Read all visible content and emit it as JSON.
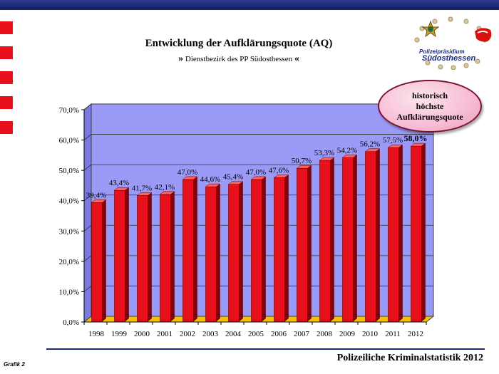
{
  "header": {
    "title": "Entwicklung der Aufklärungsquote (AQ)",
    "subtitle_prefix": "»",
    "subtitle_text": " Dienstbezirk des PP Südosthessen ",
    "subtitle_suffix": "«",
    "bar_color": "#1c2a78"
  },
  "logo": {
    "line1": "Polizeipräsidium",
    "line2": "Südosthessen"
  },
  "callout": {
    "line1": "historisch",
    "line2": "höchste",
    "line3": "Aufklärungsquote"
  },
  "footer": {
    "title": "Polizeiliche Kriminalstatistik 2012",
    "grafik": "Grafik 2"
  },
  "colors": {
    "bar": "#e8101a",
    "bar_side": "#8a0008",
    "plot_back": "#9b9bf7",
    "plot_floor": "#f2c400",
    "bullets": "#e8101a"
  },
  "chart_data": {
    "type": "bar",
    "categories": [
      "1998",
      "1999",
      "2000",
      "2001",
      "2002",
      "2003",
      "2004",
      "2005",
      "2006",
      "2007",
      "2008",
      "2009",
      "2010",
      "2011",
      "2012"
    ],
    "values": [
      39.4,
      43.4,
      41.7,
      42.1,
      47.0,
      44.6,
      45.4,
      47.0,
      47.6,
      50.7,
      53.3,
      54.2,
      56.2,
      57.5,
      58.0
    ],
    "data_labels": [
      "39,4%",
      "43,4%",
      "41,7%",
      "42,1%",
      "47,0%",
      "44,6%",
      "45,4%",
      "47,0%",
      "47,6%",
      "50,7%",
      "53,3%",
      "54,2%",
      "56,2%",
      "57,5%",
      "58,0%"
    ],
    "yticks": [
      "0,0%",
      "10,0%",
      "20,0%",
      "30,0%",
      "40,0%",
      "50,0%",
      "60,0%",
      "70,0%"
    ],
    "ylim": [
      0,
      70
    ],
    "grid": true,
    "title": "Entwicklung der Aufklärungsquote (AQ)",
    "xlabel": "",
    "ylabel": ""
  }
}
